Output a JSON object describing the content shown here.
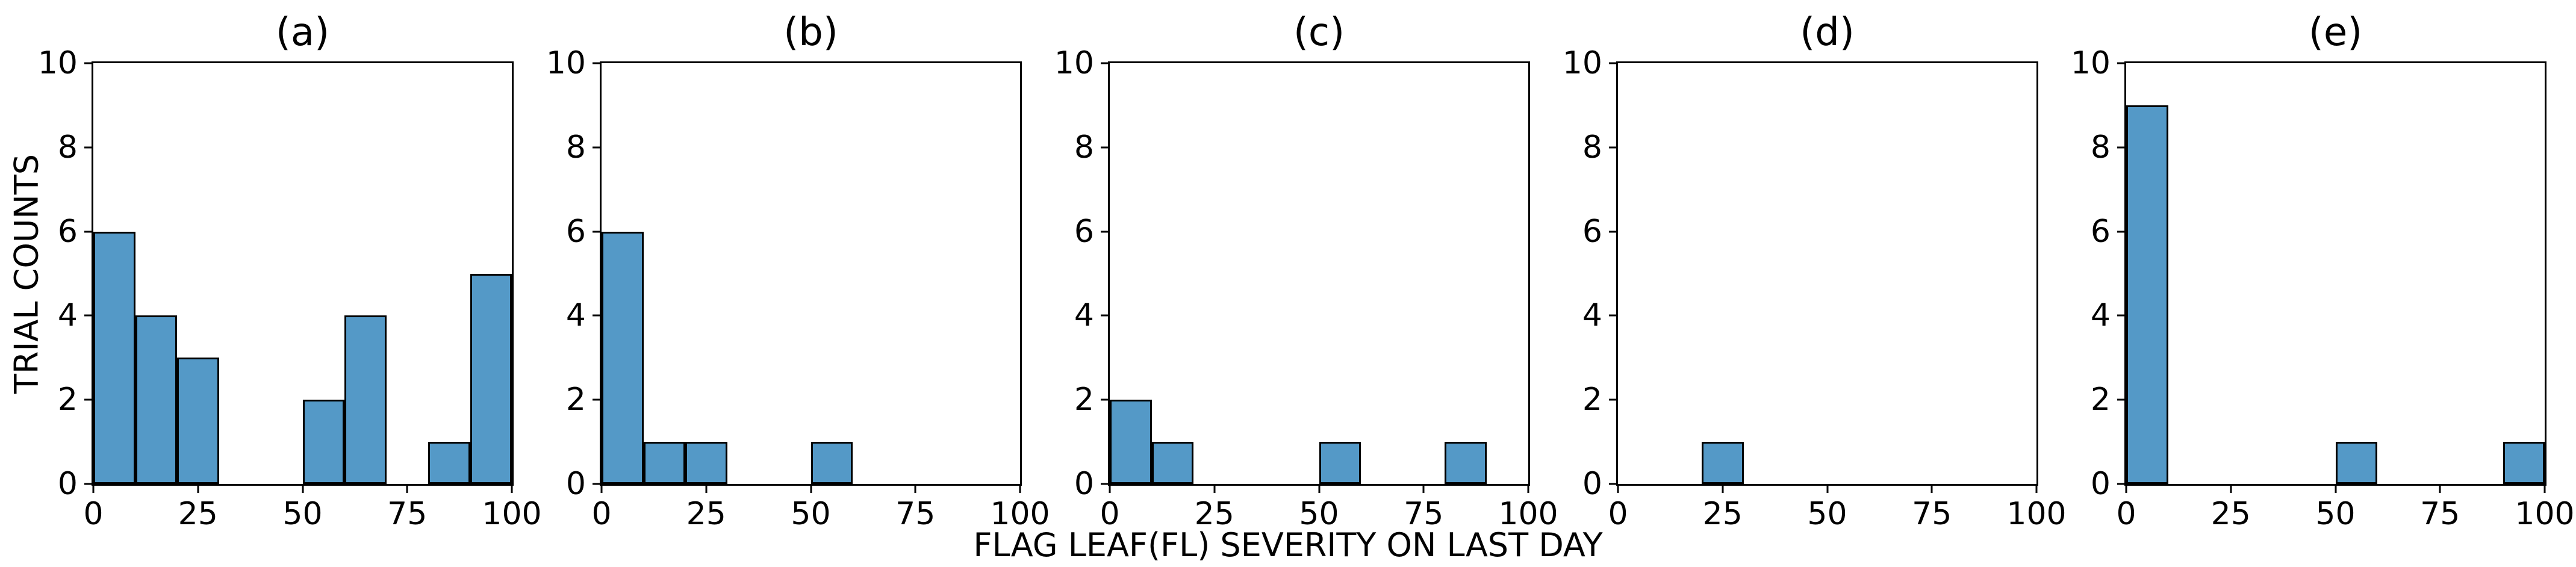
{
  "figure": {
    "ylabel": "TRIAL COUNTS",
    "xlabel": "FLAG LEAF(FL) SEVERITY ON LAST DAY",
    "colors": {
      "bar_fill": "#5499C7",
      "bar_edge": "#000000",
      "axis": "#000000",
      "background": "#ffffff"
    }
  },
  "chart_data": {
    "type": "bar",
    "subtype": "histogram-small-multiples",
    "title": "",
    "xlabel": "FLAG LEAF(FL) SEVERITY ON LAST DAY",
    "ylabel": "TRIAL COUNTS",
    "xlim": [
      0,
      100
    ],
    "ylim": [
      0,
      10
    ],
    "xticks": [
      0,
      25,
      50,
      75,
      100
    ],
    "yticks": [
      0,
      2,
      4,
      6,
      8,
      10
    ],
    "grid": false,
    "legend": "none",
    "bin_width": 10,
    "panels": [
      {
        "title": "(a)",
        "bins": [
          {
            "range": [
              0,
              10
            ],
            "count": 6
          },
          {
            "range": [
              10,
              20
            ],
            "count": 4
          },
          {
            "range": [
              20,
              30
            ],
            "count": 3
          },
          {
            "range": [
              50,
              60
            ],
            "count": 2
          },
          {
            "range": [
              60,
              70
            ],
            "count": 4
          },
          {
            "range": [
              80,
              90
            ],
            "count": 1
          },
          {
            "range": [
              90,
              100
            ],
            "count": 5
          }
        ]
      },
      {
        "title": "(b)",
        "bins": [
          {
            "range": [
              0,
              10
            ],
            "count": 6
          },
          {
            "range": [
              10,
              20
            ],
            "count": 1
          },
          {
            "range": [
              20,
              30
            ],
            "count": 1
          },
          {
            "range": [
              50,
              60
            ],
            "count": 1
          }
        ]
      },
      {
        "title": "(c)",
        "bins": [
          {
            "range": [
              0,
              10
            ],
            "count": 2
          },
          {
            "range": [
              10,
              20
            ],
            "count": 1
          },
          {
            "range": [
              50,
              60
            ],
            "count": 1
          },
          {
            "range": [
              80,
              90
            ],
            "count": 1
          }
        ]
      },
      {
        "title": "(d)",
        "bins": [
          {
            "range": [
              20,
              30
            ],
            "count": 1
          }
        ]
      },
      {
        "title": "(e)",
        "bins": [
          {
            "range": [
              0,
              10
            ],
            "count": 9
          },
          {
            "range": [
              50,
              60
            ],
            "count": 1
          },
          {
            "range": [
              90,
              100
            ],
            "count": 1
          }
        ]
      }
    ]
  }
}
